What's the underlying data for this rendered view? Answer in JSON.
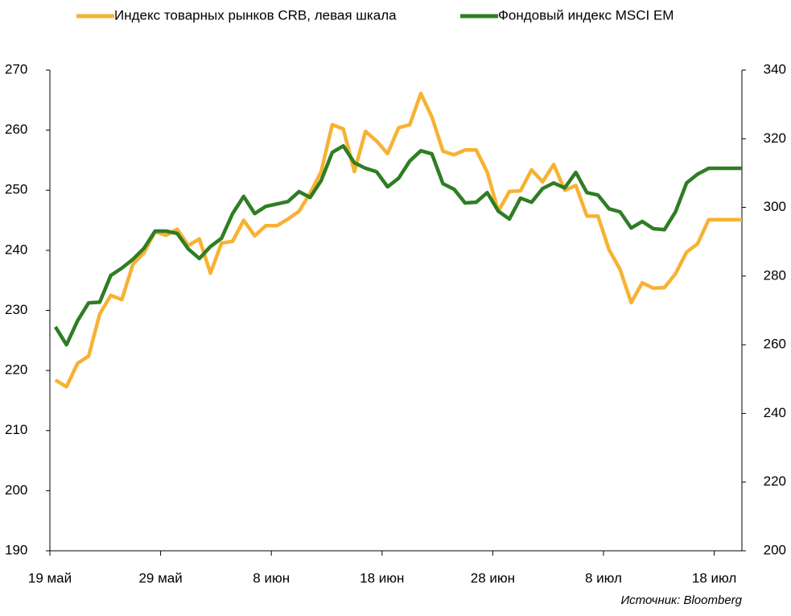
{
  "chart_data": {
    "type": "line",
    "legend": "top",
    "source": "Источник: Bloomberg",
    "x": [
      0.5,
      1.5,
      2.5,
      3.5,
      4.5,
      5.5,
      6.5,
      7.5,
      8.5,
      9.5,
      10.5,
      11.5,
      12.5,
      13.5,
      14.5,
      15.5,
      16.5,
      17.5,
      18.5,
      19.5,
      20.5,
      21.5,
      22.5,
      23.5,
      24.5,
      25.5,
      26.5,
      27.5,
      28.5,
      29.5,
      30.5,
      31.5,
      32.5,
      33.5,
      34.5,
      35.5,
      36.5,
      37.5,
      38.5,
      39.5,
      40.5,
      41.5,
      42.5,
      43.5,
      44.5,
      45.5,
      46.5,
      47.5,
      48.5,
      49.5,
      50.5,
      51.5,
      52.5,
      53.5,
      54.5,
      55.5,
      56.5,
      57.5,
      58.5,
      59.5,
      60.5,
      61.5,
      62.5
    ],
    "xlim": [
      0,
      62.5
    ],
    "xticks": [
      {
        "value": 0,
        "label": "19 май"
      },
      {
        "value": 10,
        "label": "29 май"
      },
      {
        "value": 20,
        "label": "8 июн"
      },
      {
        "value": 30,
        "label": "18 июн"
      },
      {
        "value": 40,
        "label": "28 июн"
      },
      {
        "value": 50,
        "label": "8 июл"
      },
      {
        "value": 60,
        "label": "18 июл"
      }
    ],
    "ylim": [
      190,
      270
    ],
    "yticks": [
      190,
      200,
      210,
      220,
      230,
      240,
      250,
      260,
      270
    ],
    "y2lim": [
      200,
      340
    ],
    "y2ticks": [
      200,
      220,
      240,
      260,
      280,
      300,
      320,
      340
    ],
    "series": [
      {
        "name": "Индекс товарных рынков CRB, левая шкала",
        "color": "#f7b232",
        "axis": "y",
        "values": [
          218.4,
          217.3,
          221.2,
          222.4,
          229.4,
          232.5,
          231.8,
          237.7,
          239.6,
          243.1,
          242.5,
          243.5,
          240.8,
          241.9,
          236.2,
          241.2,
          241.5,
          245.0,
          242.4,
          244.1,
          244.1,
          245.2,
          246.5,
          249.5,
          253.1,
          260.9,
          260.2,
          253.1,
          259.8,
          258.2,
          256.1,
          260.4,
          260.9,
          266.1,
          262.2,
          256.5,
          255.9,
          256.7,
          256.7,
          253.0,
          246.5,
          249.8,
          249.9,
          253.4,
          251.4,
          254.3,
          250.0,
          250.8,
          245.7,
          245.7,
          240.1,
          236.8,
          231.3,
          234.6,
          233.7,
          233.8,
          236.1,
          239.7,
          241.1,
          245.1,
          245.1,
          245.1,
          245.1
        ]
      },
      {
        "name": "Фондовый индекс MSCI EM",
        "color": "#2f7d24",
        "axis": "y2",
        "values": [
          265.2,
          260.0,
          267.0,
          272.2,
          272.4,
          280.2,
          282.3,
          284.9,
          288.1,
          293.1,
          293.1,
          292.4,
          287.9,
          285.1,
          288.6,
          291.0,
          298.2,
          303.2,
          298.2,
          300.3,
          301.0,
          301.7,
          304.6,
          302.9,
          307.8,
          316.0,
          317.9,
          313.0,
          311.4,
          310.4,
          306.0,
          308.5,
          313.5,
          316.5,
          315.6,
          306.9,
          305.3,
          301.3,
          301.5,
          304.3,
          298.9,
          296.6,
          302.7,
          301.5,
          305.5,
          307.1,
          305.7,
          310.2,
          304.3,
          303.6,
          299.6,
          298.7,
          294.0,
          295.9,
          293.8,
          293.5,
          298.7,
          307.1,
          309.7,
          311.4,
          311.4,
          311.4,
          311.4
        ]
      }
    ]
  }
}
